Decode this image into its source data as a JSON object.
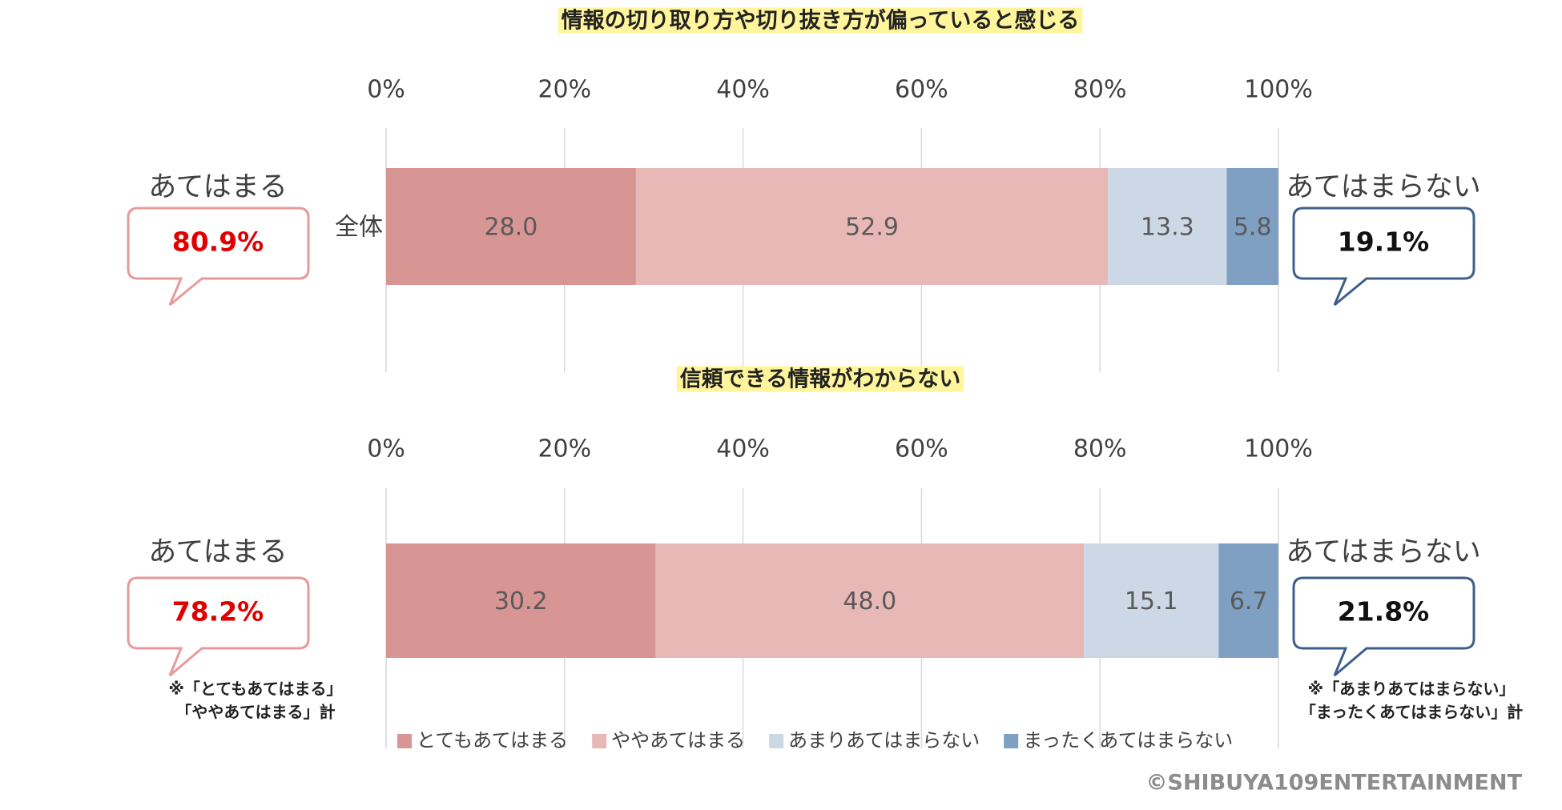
{
  "chart_data": [
    {
      "type": "bar",
      "orientation": "horizontal",
      "stacked": true,
      "title": "情報の切り取り方や切り抜き方が偏っていると感じる",
      "categories": [
        "全体"
      ],
      "series": [
        {
          "name": "とてもあてはまる",
          "color": "#d79594",
          "values": [
            28.0
          ],
          "value_labels": [
            "28.0"
          ]
        },
        {
          "name": "ややあてはまる",
          "color": "#e8b8b7",
          "values": [
            52.9
          ],
          "value_labels": [
            "52.9"
          ]
        },
        {
          "name": "あまりあてはまらない",
          "color": "#cdd8e6",
          "values": [
            13.3
          ],
          "value_labels": [
            "13.3"
          ]
        },
        {
          "name": "まったくあてはまらない",
          "color": "#7f9fc3",
          "values": [
            5.8
          ],
          "value_labels": [
            "5.8"
          ]
        }
      ],
      "xlim": [
        0,
        100
      ],
      "xticks": [
        {
          "value": 0,
          "label": "0%"
        },
        {
          "value": 20,
          "label": "20%"
        },
        {
          "value": 40,
          "label": "40%"
        },
        {
          "value": 60,
          "label": "60%"
        },
        {
          "value": 80,
          "label": "80%"
        },
        {
          "value": 100,
          "label": "100%"
        }
      ],
      "grid": true,
      "legend": false,
      "annotations": {
        "left_label": "あてはまる",
        "left_total": "80.9%",
        "right_label": "あてはまらない",
        "right_total": "19.1%"
      }
    },
    {
      "type": "bar",
      "orientation": "horizontal",
      "stacked": true,
      "title": "信頼できる情報がわからない",
      "categories": [
        null
      ],
      "series": [
        {
          "name": "とてもあてはまる",
          "color": "#d79594",
          "values": [
            30.2
          ],
          "value_labels": [
            "30.2"
          ]
        },
        {
          "name": "ややあてはまる",
          "color": "#e8b8b7",
          "values": [
            48.0
          ],
          "value_labels": [
            "48.0"
          ]
        },
        {
          "name": "あまりあてはまらない",
          "color": "#cdd8e6",
          "values": [
            15.1
          ],
          "value_labels": [
            "15.1"
          ]
        },
        {
          "name": "まったくあてはまらない",
          "color": "#7f9fc3",
          "values": [
            6.7
          ],
          "value_labels": [
            "6.7"
          ]
        }
      ],
      "xlim": [
        0,
        100
      ],
      "xticks": [
        {
          "value": 0,
          "label": "0%"
        },
        {
          "value": 20,
          "label": "20%"
        },
        {
          "value": 40,
          "label": "40%"
        },
        {
          "value": 60,
          "label": "60%"
        },
        {
          "value": 80,
          "label": "80%"
        },
        {
          "value": 100,
          "label": "100%"
        }
      ],
      "grid": true,
      "legend": true,
      "legend_position": "bottom",
      "annotations": {
        "left_label": "あてはまる",
        "left_total": "78.2%",
        "right_label": "あてはまらない",
        "right_total": "21.8%"
      }
    }
  ],
  "notes": {
    "left": [
      "※「とてもあてはまる」",
      "「ややあてはまる」計"
    ],
    "right": [
      "※「あまりあてはまらない」",
      "「まったくあてはまらない」計"
    ]
  },
  "copyright": "©SHIBUYA109ENTERTAINMENT"
}
